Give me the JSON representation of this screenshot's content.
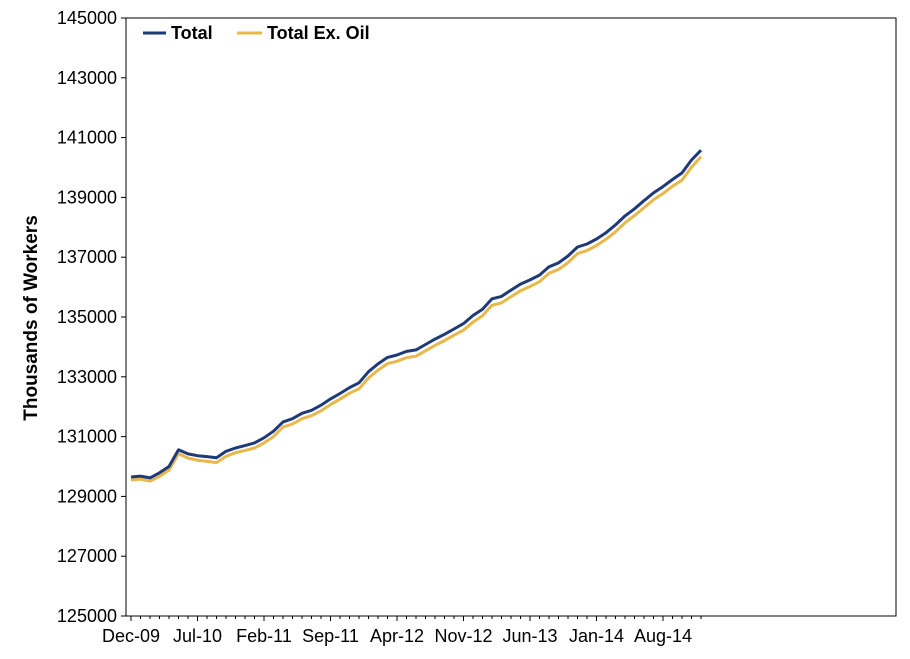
{
  "chart_data": {
    "type": "line",
    "title": "",
    "xlabel": "",
    "ylabel": "Thousands of Workers",
    "ylim": [
      125000,
      145000
    ],
    "yticks": [
      125000,
      127000,
      129000,
      131000,
      133000,
      135000,
      137000,
      139000,
      141000,
      143000,
      145000
    ],
    "x_start": "Dec-09",
    "x_tick_labels": [
      "Dec-09",
      "Jul-10",
      "Feb-11",
      "Sep-11",
      "Apr-12",
      "Nov-12",
      "Jun-13",
      "Jan-14",
      "Aug-14"
    ],
    "x_tick_every_months": 7,
    "grid": false,
    "legend_position": "top-left",
    "series": [
      {
        "name": "Total",
        "color": "#1f3a7a",
        "values": [
          129650,
          129680,
          129620,
          129790,
          130000,
          130560,
          130420,
          130360,
          130330,
          130290,
          130510,
          130620,
          130700,
          130790,
          130960,
          131180,
          131490,
          131600,
          131780,
          131880,
          132050,
          132260,
          132440,
          132640,
          132800,
          133170,
          133430,
          133650,
          133730,
          133850,
          133900,
          134080,
          134260,
          134420,
          134600,
          134780,
          135050,
          135260,
          135610,
          135690,
          135900,
          136100,
          136240,
          136400,
          136680,
          136810,
          137040,
          137340,
          137440,
          137610,
          137820,
          138080,
          138380,
          138620,
          138890,
          139150,
          139360,
          139600,
          139820,
          140250,
          140580
        ]
      },
      {
        "name": "Total Ex. Oil",
        "color": "#e8b84a",
        "values": [
          129550,
          129580,
          129510,
          129670,
          129880,
          130430,
          130280,
          130210,
          130170,
          130130,
          130340,
          130460,
          130540,
          130620,
          130790,
          131000,
          131320,
          131420,
          131600,
          131700,
          131860,
          132070,
          132250,
          132450,
          132600,
          132960,
          133220,
          133440,
          133520,
          133640,
          133690,
          133870,
          134050,
          134210,
          134390,
          134560,
          134830,
          135040,
          135390,
          135470,
          135680,
          135880,
          136020,
          136180,
          136460,
          136590,
          136820,
          137120,
          137220,
          137390,
          137600,
          137850,
          138150,
          138390,
          138660,
          138920,
          139130,
          139370,
          139580,
          140010,
          140360
        ]
      }
    ]
  }
}
